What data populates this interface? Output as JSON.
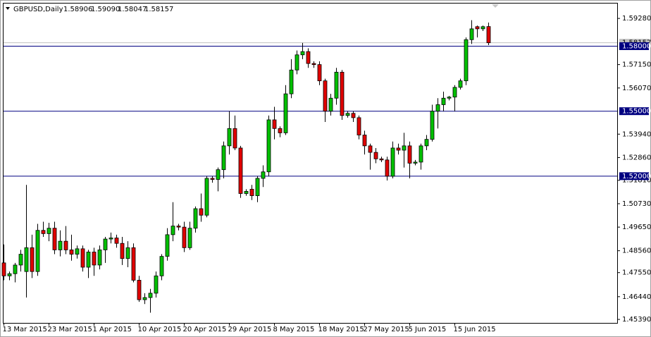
{
  "chart_data": {
    "type": "candlestick",
    "header": {
      "symbol": "GBPUSD,Daily",
      "value_labels": [
        "1.58906",
        "1.59090",
        "1.58047",
        "1.58157"
      ]
    },
    "categories": [
      "13 Mar 2015",
      null,
      null,
      null,
      null,
      null,
      null,
      null,
      "23 Mar 2015",
      null,
      null,
      null,
      null,
      null,
      null,
      null,
      "1 Apr 2015",
      null,
      null,
      null,
      null,
      null,
      null,
      null,
      "10 Apr 2015",
      null,
      null,
      null,
      null,
      null,
      null,
      null,
      "20 Apr 2015",
      null,
      null,
      null,
      null,
      null,
      null,
      null,
      "29 Apr 2015",
      null,
      null,
      null,
      null,
      null,
      null,
      null,
      "8 May 2015",
      null,
      null,
      null,
      null,
      null,
      null,
      null,
      "18 May 2015",
      null,
      null,
      null,
      null,
      null,
      null,
      null,
      "27 May 2015",
      null,
      null,
      null,
      null,
      null,
      null,
      null,
      "5 Jun 2015",
      null,
      null,
      null,
      null,
      null,
      null,
      null,
      "15 Jun 2015",
      null,
      null,
      null,
      null,
      null,
      null
    ],
    "open": [
      1.48,
      1.474,
      1.475,
      1.479,
      1.476,
      1.487,
      1.476,
      1.495,
      1.4935,
      1.496,
      1.486,
      1.49,
      1.486,
      1.484,
      1.4865,
      1.478,
      1.485,
      1.479,
      1.486,
      1.491,
      1.4915,
      1.489,
      1.482,
      1.487,
      1.472,
      1.463,
      1.464,
      1.466,
      1.474,
      1.483,
      1.493,
      1.497,
      1.4965,
      1.487,
      1.496,
      1.505,
      1.502,
      1.519,
      1.5185,
      1.523,
      1.534,
      1.542,
      1.533,
      1.512,
      1.514,
      1.511,
      1.519,
      1.522,
      1.546,
      1.542,
      1.54,
      1.558,
      1.569,
      1.576,
      1.5775,
      1.572,
      1.5715,
      1.564,
      1.55,
      1.556,
      1.568,
      1.548,
      1.549,
      1.547,
      1.539,
      1.534,
      1.531,
      1.528,
      1.5275,
      1.52,
      1.533,
      1.532,
      1.534,
      1.526,
      1.5265,
      1.534,
      1.537,
      1.55,
      1.553,
      1.556,
      1.5565,
      1.561,
      1.564,
      1.583,
      1.589,
      1.588,
      1.58906
    ],
    "high": [
      1.4885,
      1.476,
      1.48,
      1.486,
      1.516,
      1.493,
      1.498,
      1.499,
      1.4985,
      1.499,
      1.495,
      1.497,
      1.493,
      1.488,
      1.488,
      1.486,
      1.487,
      1.488,
      1.492,
      1.494,
      1.493,
      1.492,
      1.49,
      1.489,
      1.474,
      1.466,
      1.468,
      1.476,
      1.484,
      1.496,
      1.508,
      1.498,
      1.499,
      1.499,
      1.506,
      1.512,
      1.52,
      1.52,
      1.524,
      1.536,
      1.55,
      1.548,
      1.534,
      1.514,
      1.516,
      1.52,
      1.525,
      1.548,
      1.552,
      1.543,
      1.562,
      1.574,
      1.578,
      1.5815,
      1.579,
      1.573,
      1.573,
      1.565,
      1.558,
      1.57,
      1.569,
      1.55,
      1.55,
      1.548,
      1.541,
      1.535,
      1.533,
      1.529,
      1.529,
      1.536,
      1.535,
      1.54,
      1.536,
      1.5275,
      1.535,
      1.539,
      1.553,
      1.556,
      1.559,
      1.557,
      1.562,
      1.565,
      1.584,
      1.592,
      1.5895,
      1.5895,
      1.5909
    ],
    "low": [
      1.472,
      1.472,
      1.471,
      1.476,
      1.464,
      1.473,
      1.474,
      1.492,
      1.49,
      1.484,
      1.483,
      1.484,
      1.481,
      1.482,
      1.476,
      1.473,
      1.474,
      1.477,
      1.48,
      1.489,
      1.487,
      1.479,
      1.478,
      1.471,
      1.462,
      1.461,
      1.457,
      1.464,
      1.472,
      1.481,
      1.49,
      1.495,
      1.485,
      1.486,
      1.494,
      1.499,
      1.501,
      1.517,
      1.513,
      1.519,
      1.53,
      1.532,
      1.51,
      1.511,
      1.509,
      1.508,
      1.515,
      1.52,
      1.537,
      1.538,
      1.539,
      1.556,
      1.567,
      1.574,
      1.57,
      1.57,
      1.562,
      1.545,
      1.548,
      1.553,
      1.546,
      1.547,
      1.545,
      1.537,
      1.53,
      1.523,
      1.526,
      1.5265,
      1.518,
      1.519,
      1.53,
      1.524,
      1.519,
      1.525,
      1.523,
      1.532,
      1.536,
      1.542,
      1.55,
      1.555,
      1.55,
      1.56,
      1.562,
      1.581,
      1.584,
      1.587,
      1.58047
    ],
    "close": [
      1.474,
      1.475,
      1.479,
      1.484,
      1.487,
      1.476,
      1.495,
      1.4935,
      1.496,
      1.486,
      1.49,
      1.486,
      1.484,
      1.4865,
      1.478,
      1.485,
      1.479,
      1.486,
      1.491,
      1.4915,
      1.489,
      1.482,
      1.487,
      1.472,
      1.463,
      1.464,
      1.466,
      1.474,
      1.483,
      1.493,
      1.497,
      1.4965,
      1.487,
      1.496,
      1.505,
      1.502,
      1.519,
      1.5185,
      1.523,
      1.534,
      1.542,
      1.533,
      1.512,
      1.513,
      1.511,
      1.519,
      1.522,
      1.546,
      1.542,
      1.54,
      1.558,
      1.569,
      1.576,
      1.5775,
      1.572,
      1.5715,
      1.564,
      1.55,
      1.556,
      1.568,
      1.548,
      1.549,
      1.547,
      1.539,
      1.534,
      1.531,
      1.528,
      1.5275,
      1.52,
      1.533,
      1.532,
      1.534,
      1.526,
      1.5265,
      1.534,
      1.537,
      1.55,
      1.553,
      1.556,
      1.5565,
      1.561,
      1.564,
      1.583,
      1.588,
      1.588,
      1.589,
      1.58157
    ],
    "up_color": "#00c000",
    "down_color": "#e00000",
    "level_color": "#000080",
    "bid_color": "#c0c0c0",
    "ylim": [
      1.4523,
      1.6
    ],
    "yticks": [
      {
        "value": 1.5928,
        "label": "1.59280"
      },
      {
        "value": 1.5715,
        "label": "1.57150"
      },
      {
        "value": 1.5607,
        "label": "1.56070"
      },
      {
        "value": 1.5394,
        "label": "1.53940"
      },
      {
        "value": 1.5286,
        "label": "1.52860"
      },
      {
        "value": 1.5181,
        "label": "1.51810"
      },
      {
        "value": 1.5073,
        "label": "1.50730"
      },
      {
        "value": 1.4965,
        "label": "1.49650"
      },
      {
        "value": 1.4856,
        "label": "1.48560"
      },
      {
        "value": 1.4755,
        "label": "1.47550"
      },
      {
        "value": 1.4644,
        "label": "1.46440"
      },
      {
        "value": 1.4539,
        "label": "1.45390"
      }
    ],
    "levels": [
      {
        "value": 1.58,
        "label": "1.58000"
      },
      {
        "value": 1.55,
        "label": "1.55000"
      },
      {
        "value": 1.52,
        "label": "1.52000"
      }
    ]
  }
}
